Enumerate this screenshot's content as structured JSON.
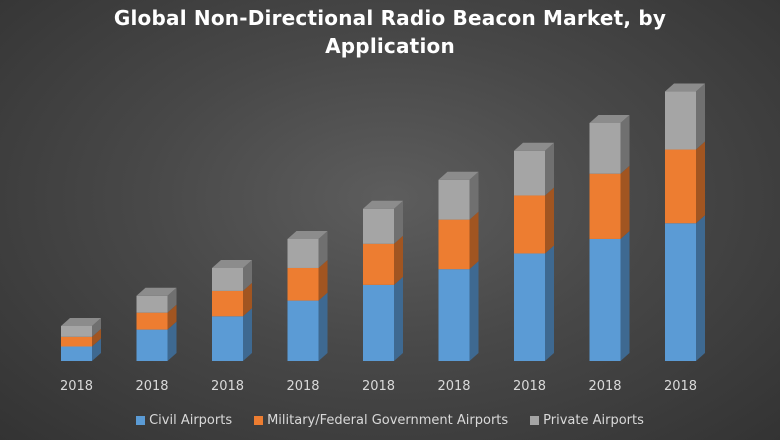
{
  "chart_data": {
    "type": "bar",
    "stacked": true,
    "style": "3d-columns",
    "title_lines": [
      "Global Non-Directional Radio Beacon Market, by",
      "Application"
    ],
    "title": "Global Non-Directional Radio Beacon Market, by Application",
    "categories": [
      "2018",
      "2018",
      "2018",
      "2018",
      "2018",
      "2018",
      "2018",
      "2018",
      "2018"
    ],
    "series": [
      {
        "name": "Civil Airports",
        "color": "#5b9bd5",
        "values": [
          12,
          26,
          37,
          50,
          63,
          76,
          89,
          101,
          114
        ]
      },
      {
        "name": "Military/Federal Government Airports",
        "color": "#ed7d31",
        "values": [
          8,
          14,
          21,
          27,
          34,
          41,
          48,
          54,
          61
        ]
      },
      {
        "name": "Private Airports",
        "color": "#a5a5a5",
        "values": [
          9,
          14,
          19,
          24,
          29,
          33,
          37,
          42,
          48
        ]
      }
    ],
    "ylim": [
      0,
      240
    ],
    "grid": false,
    "y_axis_visible": false,
    "legend_position": "bottom"
  }
}
